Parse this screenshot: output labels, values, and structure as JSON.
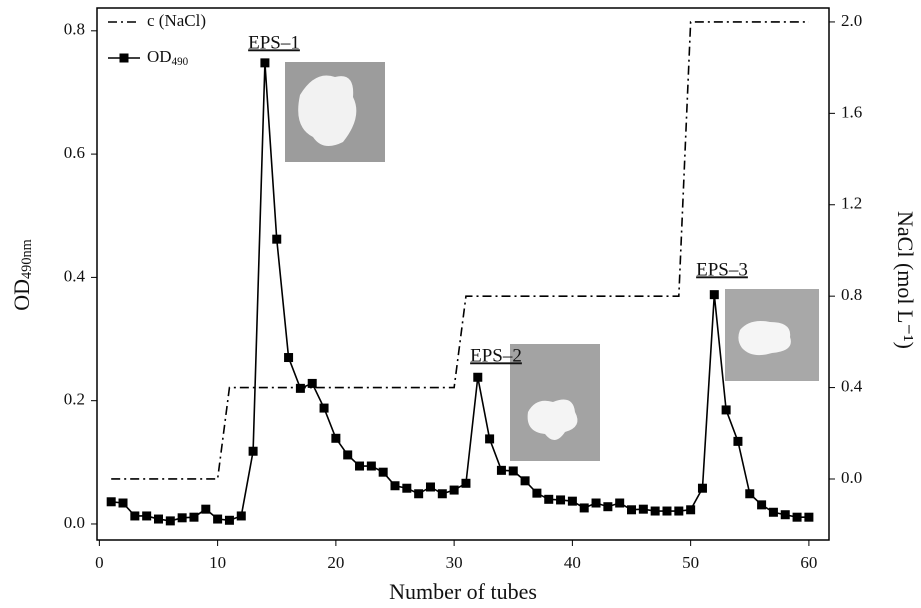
{
  "chart_data": {
    "type": "line",
    "x_label": "Number of tubes",
    "y_label": "OD490nm",
    "y2_label": "NaCl (mol L⁻¹)",
    "xlim": [
      -0.2,
      61.7
    ],
    "xticks": [
      0,
      10,
      20,
      30,
      40,
      50,
      60
    ],
    "ylim": [
      -0.026,
      0.837
    ],
    "yticks": [
      {
        "value": 0,
        "label": "0.0"
      },
      0.2,
      0.4,
      0.6,
      0.8
    ],
    "y2lim": [
      -0.267,
      2.061
    ],
    "y2ticks": [
      {
        "value": 0,
        "label": "0.0"
      },
      0.4,
      0.8,
      1.2,
      1.6,
      {
        "value": 2,
        "label": "2.0"
      }
    ],
    "grid": false,
    "legend": "upper left",
    "annotations": [
      "EPS–1",
      "EPS–2",
      "EPS–3"
    ],
    "series": [
      {
        "name": "c (NaCl)",
        "color": "#000000",
        "axis": "y2",
        "style": "dashdot",
        "x": [
          1,
          10,
          11,
          30,
          31,
          49,
          50,
          60
        ],
        "values": [
          0,
          0,
          0.4,
          0.4,
          0.8,
          0.8,
          2.0,
          2.0
        ]
      },
      {
        "name": "OD490",
        "color": "#000000",
        "axis": "y",
        "style": "solid-square",
        "x": [
          1,
          2,
          3,
          4,
          5,
          6,
          7,
          8,
          9,
          10,
          11,
          12,
          13,
          14,
          15,
          16,
          17,
          18,
          19,
          20,
          21,
          22,
          23,
          24,
          25,
          26,
          27,
          28,
          29,
          30,
          31,
          32,
          33,
          34,
          35,
          36,
          37,
          38,
          39,
          40,
          41,
          42,
          43,
          44,
          45,
          46,
          47,
          48,
          49,
          50,
          51,
          52,
          53,
          54,
          55,
          56,
          57,
          58,
          59,
          60
        ],
        "values": [
          0.036,
          0.034,
          0.013,
          0.013,
          0.008,
          0.005,
          0.01,
          0.011,
          0.024,
          0.008,
          0.006,
          0.013,
          0.118,
          0.748,
          0.462,
          0.27,
          0.22,
          0.228,
          0.188,
          0.139,
          0.112,
          0.094,
          0.094,
          0.084,
          0.062,
          0.058,
          0.049,
          0.06,
          0.049,
          0.055,
          0.066,
          0.238,
          0.138,
          0.087,
          0.086,
          0.07,
          0.05,
          0.04,
          0.039,
          0.037,
          0.026,
          0.034,
          0.028,
          0.034,
          0.023,
          0.024,
          0.021,
          0.021,
          0.021,
          0.023,
          0.058,
          0.372,
          0.185,
          0.134,
          0.049,
          0.031,
          0.019,
          0.015,
          0.011,
          0.011
        ]
      }
    ]
  }
}
